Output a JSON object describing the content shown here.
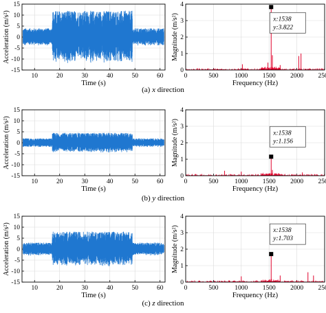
{
  "figure": {
    "panel_captions": [
      {
        "prefix": "(a) ",
        "axis": "x",
        "suffix": " direction"
      },
      {
        "prefix": "(b) ",
        "axis": "y",
        "suffix": " direction"
      },
      {
        "prefix": "(c) ",
        "axis": "z",
        "suffix": " direction"
      }
    ],
    "colors": {
      "time_signal": "#1f77d0",
      "spectrum": "#e0002a",
      "marker": "#000000"
    }
  },
  "chart_data": [
    {
      "type": "line",
      "panel": "a-time",
      "xlabel": "Time (s)",
      "ylabel": "Acceleration (m/s²)",
      "xlim": [
        5,
        62
      ],
      "ylim": [
        -15,
        15
      ],
      "xticks": [
        "10",
        "20",
        "30",
        "40",
        "50",
        "60"
      ],
      "yticks": [
        "15",
        "10",
        "5",
        "0",
        "-5",
        "-10",
        "-15"
      ],
      "grid": true,
      "series": [
        {
          "values": [
            {
              "t_start": 5,
              "t_end": 17,
              "amplitude": 4
            },
            {
              "t_start": 17,
              "t_end": 49,
              "amplitude": 12
            },
            {
              "t_start": 49,
              "t_end": 62,
              "amplitude": 4
            }
          ]
        }
      ]
    },
    {
      "type": "line",
      "panel": "a-freq",
      "xlabel": "Frequency (Hz)",
      "ylabel": "Magnitude (m/s²)",
      "xlim": [
        0,
        2500
      ],
      "ylim": [
        0,
        4
      ],
      "xticks": [
        "0",
        "500",
        "1000",
        "1500",
        "2000",
        "2500"
      ],
      "yticks": [
        "4",
        "3",
        "2",
        "1",
        "0"
      ],
      "grid": true,
      "peaks": [
        {
          "x": 1538,
          "y": 3.822
        },
        {
          "x": 1560,
          "y": 0.9
        },
        {
          "x": 1480,
          "y": 0.45
        },
        {
          "x": 2035,
          "y": 0.85
        },
        {
          "x": 2075,
          "y": 1.0
        },
        {
          "x": 1020,
          "y": 0.35
        },
        {
          "x": 1700,
          "y": 0.3
        }
      ],
      "datatip": {
        "x": 1538,
        "y": 3.822,
        "x_label": "x:1538",
        "y_label": "y:3.822"
      }
    },
    {
      "type": "line",
      "panel": "b-time",
      "xlabel": "Time (s)",
      "ylabel": "Acceleration (m/s²)",
      "xlim": [
        5,
        62
      ],
      "ylim": [
        -15,
        15
      ],
      "xticks": [
        "10",
        "20",
        "30",
        "40",
        "50",
        "60"
      ],
      "yticks": [
        "15",
        "10",
        "5",
        "0",
        "-5",
        "-10",
        "-15"
      ],
      "grid": true,
      "series": [
        {
          "values": [
            {
              "t_start": 5,
              "t_end": 17,
              "amplitude": 2
            },
            {
              "t_start": 17,
              "t_end": 49,
              "amplitude": 4.5
            },
            {
              "t_start": 49,
              "t_end": 62,
              "amplitude": 2
            }
          ]
        }
      ]
    },
    {
      "type": "line",
      "panel": "b-freq",
      "xlabel": "Frequency (Hz)",
      "ylabel": "Magnitude (m/s²)",
      "xlim": [
        0,
        2500
      ],
      "ylim": [
        0,
        4
      ],
      "xticks": [
        "0",
        "500",
        "1000",
        "1500",
        "2000",
        "2500"
      ],
      "yticks": [
        "4",
        "3",
        "2",
        "1",
        "0"
      ],
      "grid": true,
      "peaks": [
        {
          "x": 1538,
          "y": 1.156
        },
        {
          "x": 1000,
          "y": 0.25
        },
        {
          "x": 700,
          "y": 0.3
        },
        {
          "x": 1560,
          "y": 0.35
        },
        {
          "x": 2100,
          "y": 0.2
        }
      ],
      "datatip": {
        "x": 1538,
        "y": 1.156,
        "x_label": "x:1538",
        "y_label": "y:1.156"
      }
    },
    {
      "type": "line",
      "panel": "c-time",
      "xlabel": "Time (s)",
      "ylabel": "Acceleration (m/s²)",
      "xlim": [
        5,
        62
      ],
      "ylim": [
        -15,
        15
      ],
      "xticks": [
        "10",
        "20",
        "30",
        "40",
        "50",
        "60"
      ],
      "yticks": [
        "15",
        "10",
        "5",
        "0",
        "-5",
        "-10",
        "-15"
      ],
      "grid": true,
      "series": [
        {
          "values": [
            {
              "t_start": 5,
              "t_end": 17,
              "amplitude": 3
            },
            {
              "t_start": 17,
              "t_end": 49,
              "amplitude": 8
            },
            {
              "t_start": 49,
              "t_end": 62,
              "amplitude": 3
            }
          ]
        }
      ]
    },
    {
      "type": "line",
      "panel": "c-freq",
      "xlabel": "Frequency (Hz)",
      "ylabel": "Magnitude (m/s²)",
      "xlim": [
        0,
        2500
      ],
      "ylim": [
        0,
        4
      ],
      "xticks": [
        "0",
        "500",
        "1000",
        "1500",
        "2000",
        "2500"
      ],
      "yticks": [
        "4",
        "3",
        "2",
        "1",
        "0"
      ],
      "grid": true,
      "peaks": [
        {
          "x": 1538,
          "y": 1.703
        },
        {
          "x": 1000,
          "y": 0.35
        },
        {
          "x": 1700,
          "y": 0.4
        },
        {
          "x": 2200,
          "y": 0.6
        },
        {
          "x": 2300,
          "y": 0.4
        }
      ],
      "datatip": {
        "x": 1538,
        "y": 1.703,
        "x_label": "x:1538",
        "y_label": "y:1.703"
      }
    }
  ]
}
